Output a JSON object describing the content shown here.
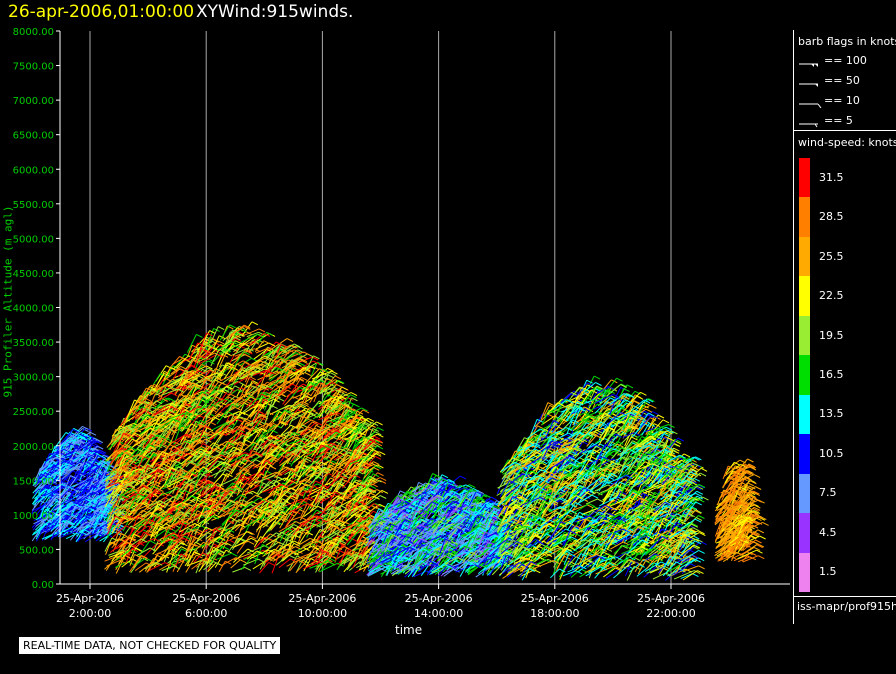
{
  "header": {
    "date": "26-apr-2006,01:00:00",
    "product": "XYWind:915winds."
  },
  "chart_data": {
    "type": "scatter",
    "title": "XYWind:915winds.",
    "xlabel": "time",
    "ylabel": "915 Profiler Altitude (m agl)",
    "ylim": [
      0,
      8000
    ],
    "y_ticks": [
      "0.00",
      "500.00",
      "1000.00",
      "1500.00",
      "2000.00",
      "2500.00",
      "3000.00",
      "3500.00",
      "4000.00",
      "4500.00",
      "5000.00",
      "5500.00",
      "6000.00",
      "6500.00",
      "7000.00",
      "7500.00",
      "8000.00"
    ],
    "x_hours_range": [
      0,
      25
    ],
    "x_ticks": [
      {
        "hour": 2,
        "date": "25-Apr-2006",
        "time": "2:00:00"
      },
      {
        "hour": 6,
        "date": "25-Apr-2006",
        "time": "6:00:00"
      },
      {
        "hour": 10,
        "date": "25-Apr-2006",
        "time": "10:00:00"
      },
      {
        "hour": 14,
        "date": "25-Apr-2006",
        "time": "14:00:00"
      },
      {
        "hour": 18,
        "date": "25-Apr-2006",
        "time": "18:00:00"
      },
      {
        "hour": 22,
        "date": "25-Apr-2006",
        "time": "22:00:00"
      }
    ],
    "grid": "vertical",
    "series_approx": [
      {
        "period": "00:00-02:30",
        "altitude_range_m": [
          600,
          2100
        ],
        "speed_knots": [
          7,
          14
        ]
      },
      {
        "period": "02:30-11:30",
        "altitude_range_m": [
          150,
          3600
        ],
        "speed_knots": [
          16,
          32
        ]
      },
      {
        "period": "11:30-16:00",
        "altitude_range_m": [
          100,
          1400
        ],
        "speed_knots": [
          5,
          19
        ]
      },
      {
        "period": "16:00-22:30",
        "altitude_range_m": [
          50,
          2800
        ],
        "speed_knots": [
          10,
          26
        ]
      },
      {
        "period": "23:30-24:30",
        "altitude_range_m": [
          300,
          1700
        ],
        "speed_knots": [
          23,
          29
        ]
      }
    ]
  },
  "legend": {
    "barb_title": "barb flags in knots",
    "barbs": [
      {
        "label": "== 100",
        "flags": 2
      },
      {
        "label": "== 50",
        "flags": 1
      },
      {
        "label": "== 10",
        "flags": 0,
        "lines": 1
      },
      {
        "label": "== 5",
        "flags": 0,
        "lines": 0
      }
    ],
    "speed_title": "wind-speed: knots",
    "speed_bins": [
      {
        "label": "31.5",
        "color": "#ff0000"
      },
      {
        "label": "28.5",
        "color": "#ff7f00"
      },
      {
        "label": "25.5",
        "color": "#ffaa00"
      },
      {
        "label": "22.5",
        "color": "#ffff00"
      },
      {
        "label": "19.5",
        "color": "#99ee33"
      },
      {
        "label": "16.5",
        "color": "#00dd00"
      },
      {
        "label": "13.5",
        "color": "#00ffff"
      },
      {
        "label": "10.5",
        "color": "#0000ff"
      },
      {
        "label": "7.5",
        "color": "#6699ff"
      },
      {
        "label": "4.5",
        "color": "#9933ff"
      },
      {
        "label": "1.5",
        "color": "#ee82ee"
      }
    ],
    "source": "iss-mapr/prof915h"
  },
  "footer": {
    "quality_notice": "REAL-TIME DATA, NOT CHECKED FOR QUALITY"
  }
}
